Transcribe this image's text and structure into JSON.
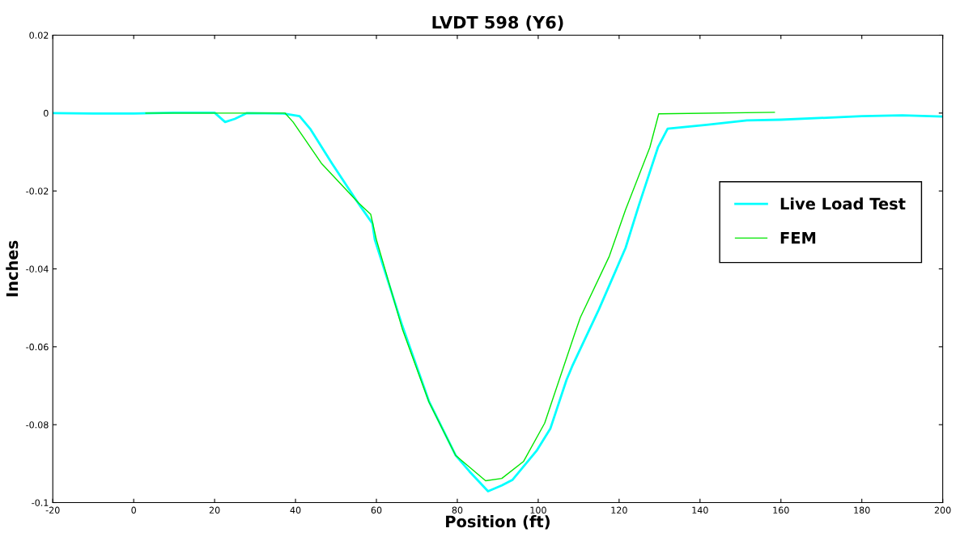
{
  "chart_data": {
    "type": "line",
    "title": "LVDT 598 (Y6)",
    "xlabel": "Position (ft)",
    "ylabel": "Inches",
    "xlim": [
      -20,
      200
    ],
    "ylim": [
      -0.1,
      0.02
    ],
    "xticks": [
      -20,
      0,
      20,
      40,
      60,
      80,
      100,
      120,
      140,
      160,
      180,
      200
    ],
    "yticks": [
      -0.1,
      -0.08,
      -0.06,
      -0.04,
      -0.02,
      0,
      0.02
    ],
    "grid": false,
    "legend": "right",
    "series": [
      {
        "name": "Live Load Test",
        "color": "#00ffff",
        "x": [
          -20,
          -10,
          0,
          10,
          20,
          22.6,
          25,
          28,
          37,
          41,
          43.6,
          49,
          55.6,
          59,
          59.6,
          66.4,
          73,
          79.6,
          83,
          87.6,
          91,
          93.6,
          99.6,
          103,
          107,
          108.4,
          115,
          121.6,
          125,
          129.6,
          132,
          141.6,
          151.6,
          160,
          180,
          190,
          200
        ],
        "values": [
          0,
          -0.0001,
          -0.0001,
          0.0001,
          0.0001,
          -0.0023,
          -0.0015,
          0,
          -0.0001,
          -0.0008,
          -0.004,
          -0.0129,
          -0.0233,
          -0.0283,
          -0.0325,
          -0.0546,
          -0.074,
          -0.0879,
          -0.092,
          -0.0971,
          -0.0956,
          -0.0942,
          -0.0867,
          -0.081,
          -0.0685,
          -0.065,
          -0.0504,
          -0.0346,
          -0.0233,
          -0.0088,
          -0.004,
          -0.003,
          -0.0019,
          -0.0017,
          -0.0008,
          -0.0006,
          -0.0009
        ]
      },
      {
        "name": "FEM",
        "color": "#00e600",
        "x": [
          3,
          37.4,
          39.4,
          46.4,
          55.6,
          58.6,
          60,
          66.4,
          73,
          79.6,
          87,
          91,
          96.4,
          101.6,
          109,
          110.4,
          117.6,
          121.6,
          127.6,
          129.8,
          158.4
        ],
        "values": [
          0,
          0,
          -0.0023,
          -0.0129,
          -0.0231,
          -0.026,
          -0.0325,
          -0.0554,
          -0.0742,
          -0.0879,
          -0.0944,
          -0.0938,
          -0.0894,
          -0.0796,
          -0.0567,
          -0.0525,
          -0.0367,
          -0.0248,
          -0.0088,
          -0.0002,
          0.0002
        ]
      }
    ]
  }
}
